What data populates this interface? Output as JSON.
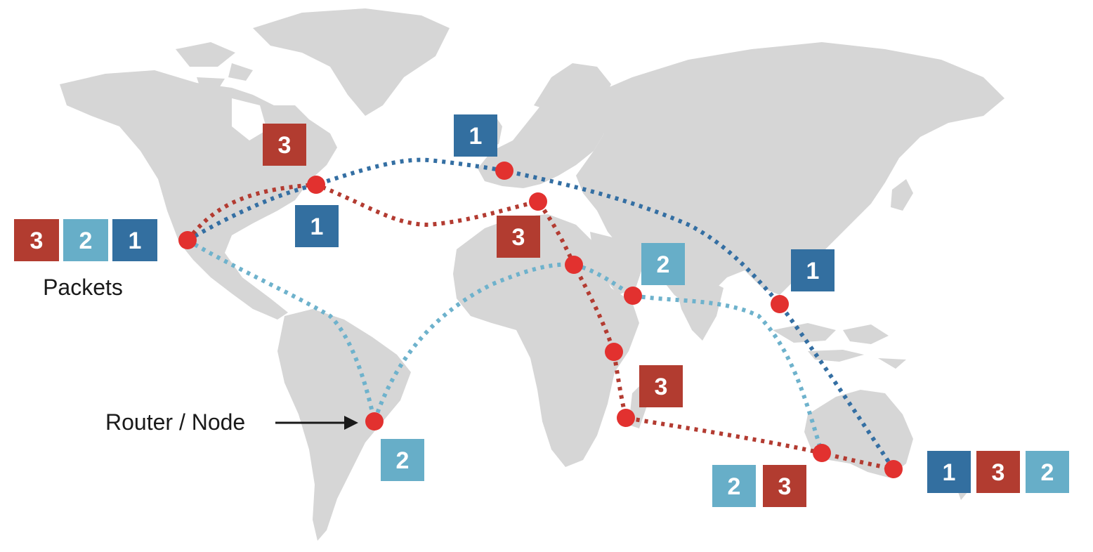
{
  "colors": {
    "land": "#d6d6d6",
    "node": "#e2312f",
    "packet_1": "#336fa0",
    "packet_2": "#67aec8",
    "packet_3": "#b23c30",
    "route_1": "#346fa3",
    "route_2": "#6eb2cc",
    "route_3": "#b33b31"
  },
  "labels": {
    "packets": "Packets",
    "router_node": "Router / Node"
  },
  "packets": {
    "source": [
      "3",
      "2",
      "1"
    ],
    "dest_right": [
      "1",
      "3",
      "2"
    ],
    "dest_left": [
      "2",
      "3"
    ],
    "in_transit": [
      "3",
      "1",
      "1",
      "3",
      "2",
      "1",
      "2",
      "3"
    ]
  }
}
